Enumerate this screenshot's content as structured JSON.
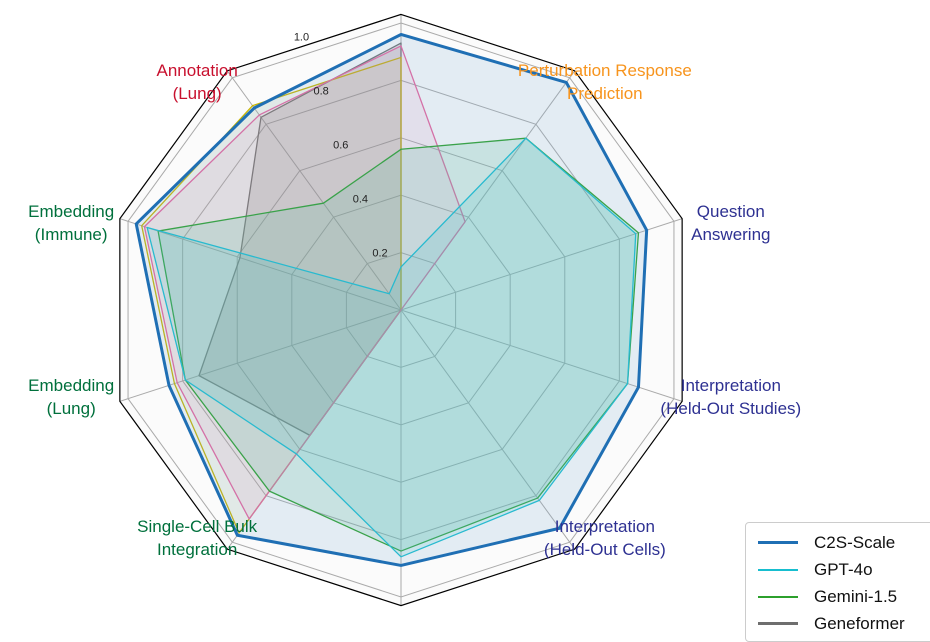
{
  "chart_data": {
    "type": "radar",
    "title": "",
    "rlim": [
      0,
      1.03
    ],
    "rticks": [
      "0.2",
      "0.4",
      "0.6",
      "0.8",
      "1.0"
    ],
    "rtick_values": [
      0.2,
      0.4,
      0.6,
      0.8,
      1.0
    ],
    "axes": [
      {
        "label": "",
        "color": "#333333"
      },
      {
        "label": "Perturbation Response\nPrediction",
        "color": "#f7941d"
      },
      {
        "label": "Question\nAnswering",
        "color": "#2e3192"
      },
      {
        "label": "Interpretation\n(Held-Out Studies)",
        "color": "#2e3192"
      },
      {
        "label": "Interpretation\n(Held-Out Cells)",
        "color": "#2e3192"
      },
      {
        "label": "",
        "color": "#333333"
      },
      {
        "label": "Single-Cell Bulk\nIntegration",
        "color": "#00703c"
      },
      {
        "label": "Embedding\n(Lung)",
        "color": "#00703c"
      },
      {
        "label": "Embedding\n(Immune)",
        "color": "#00703c"
      },
      {
        "label": "Annotation\n(Lung)",
        "color": "#c8102e"
      }
    ],
    "series": [
      {
        "name": "Geneformer",
        "color": "#6e6e6e",
        "fill": "rgba(120,120,120,0.22)",
        "width": 1.3,
        "values": [
          0.93,
          0,
          0,
          0,
          0,
          0,
          0.54,
          0.74,
          0.59,
          0.83
        ]
      },
      {
        "name": "",
        "color": "#c8b400",
        "fill": "rgba(200,180,0,0.06)",
        "width": 1.3,
        "values": [
          0.88,
          0,
          0,
          0,
          0,
          0,
          0.96,
          0.83,
          0.95,
          0.88
        ]
      },
      {
        "name": "",
        "color": "#e8649e",
        "fill": "rgba(232,100,158,0.10)",
        "width": 1.3,
        "values": [
          0.92,
          0.38,
          0,
          0,
          0,
          0,
          0.9,
          0.82,
          0.94,
          0.84
        ]
      },
      {
        "name": "Gemini-1.5",
        "color": "#2ca02c",
        "fill": "rgba(100,190,150,0.22)",
        "width": 1.3,
        "values": [
          0.56,
          0.74,
          0.87,
          0.83,
          0.81,
          0.84,
          0.78,
          0.79,
          0.89,
          0.46
        ]
      },
      {
        "name": "GPT-4o",
        "color": "#17becf",
        "fill": "rgba(60,200,200,0.18)",
        "width": 1.3,
        "values": [
          0.15,
          0.74,
          0.86,
          0.83,
          0.82,
          0.86,
          0.62,
          0.79,
          0.93,
          0.07
        ]
      },
      {
        "name": "C2S-Scale",
        "color": "#1f6fb4",
        "fill": "rgba(120,170,210,0.18)",
        "width": 3,
        "values": [
          0.96,
          0.98,
          0.9,
          0.87,
          0.94,
          0.89,
          0.97,
          0.85,
          0.97,
          0.87
        ]
      }
    ],
    "legend": {
      "position": "bottom-right",
      "entries": [
        {
          "name": "C2S-Scale",
          "color": "#1f6fb4"
        },
        {
          "name": "GPT-4o",
          "color": "#17becf"
        },
        {
          "name": "Gemini-1.5",
          "color": "#2ca02c"
        },
        {
          "name": "Geneformer",
          "color": "#6e6e6e"
        }
      ]
    }
  }
}
